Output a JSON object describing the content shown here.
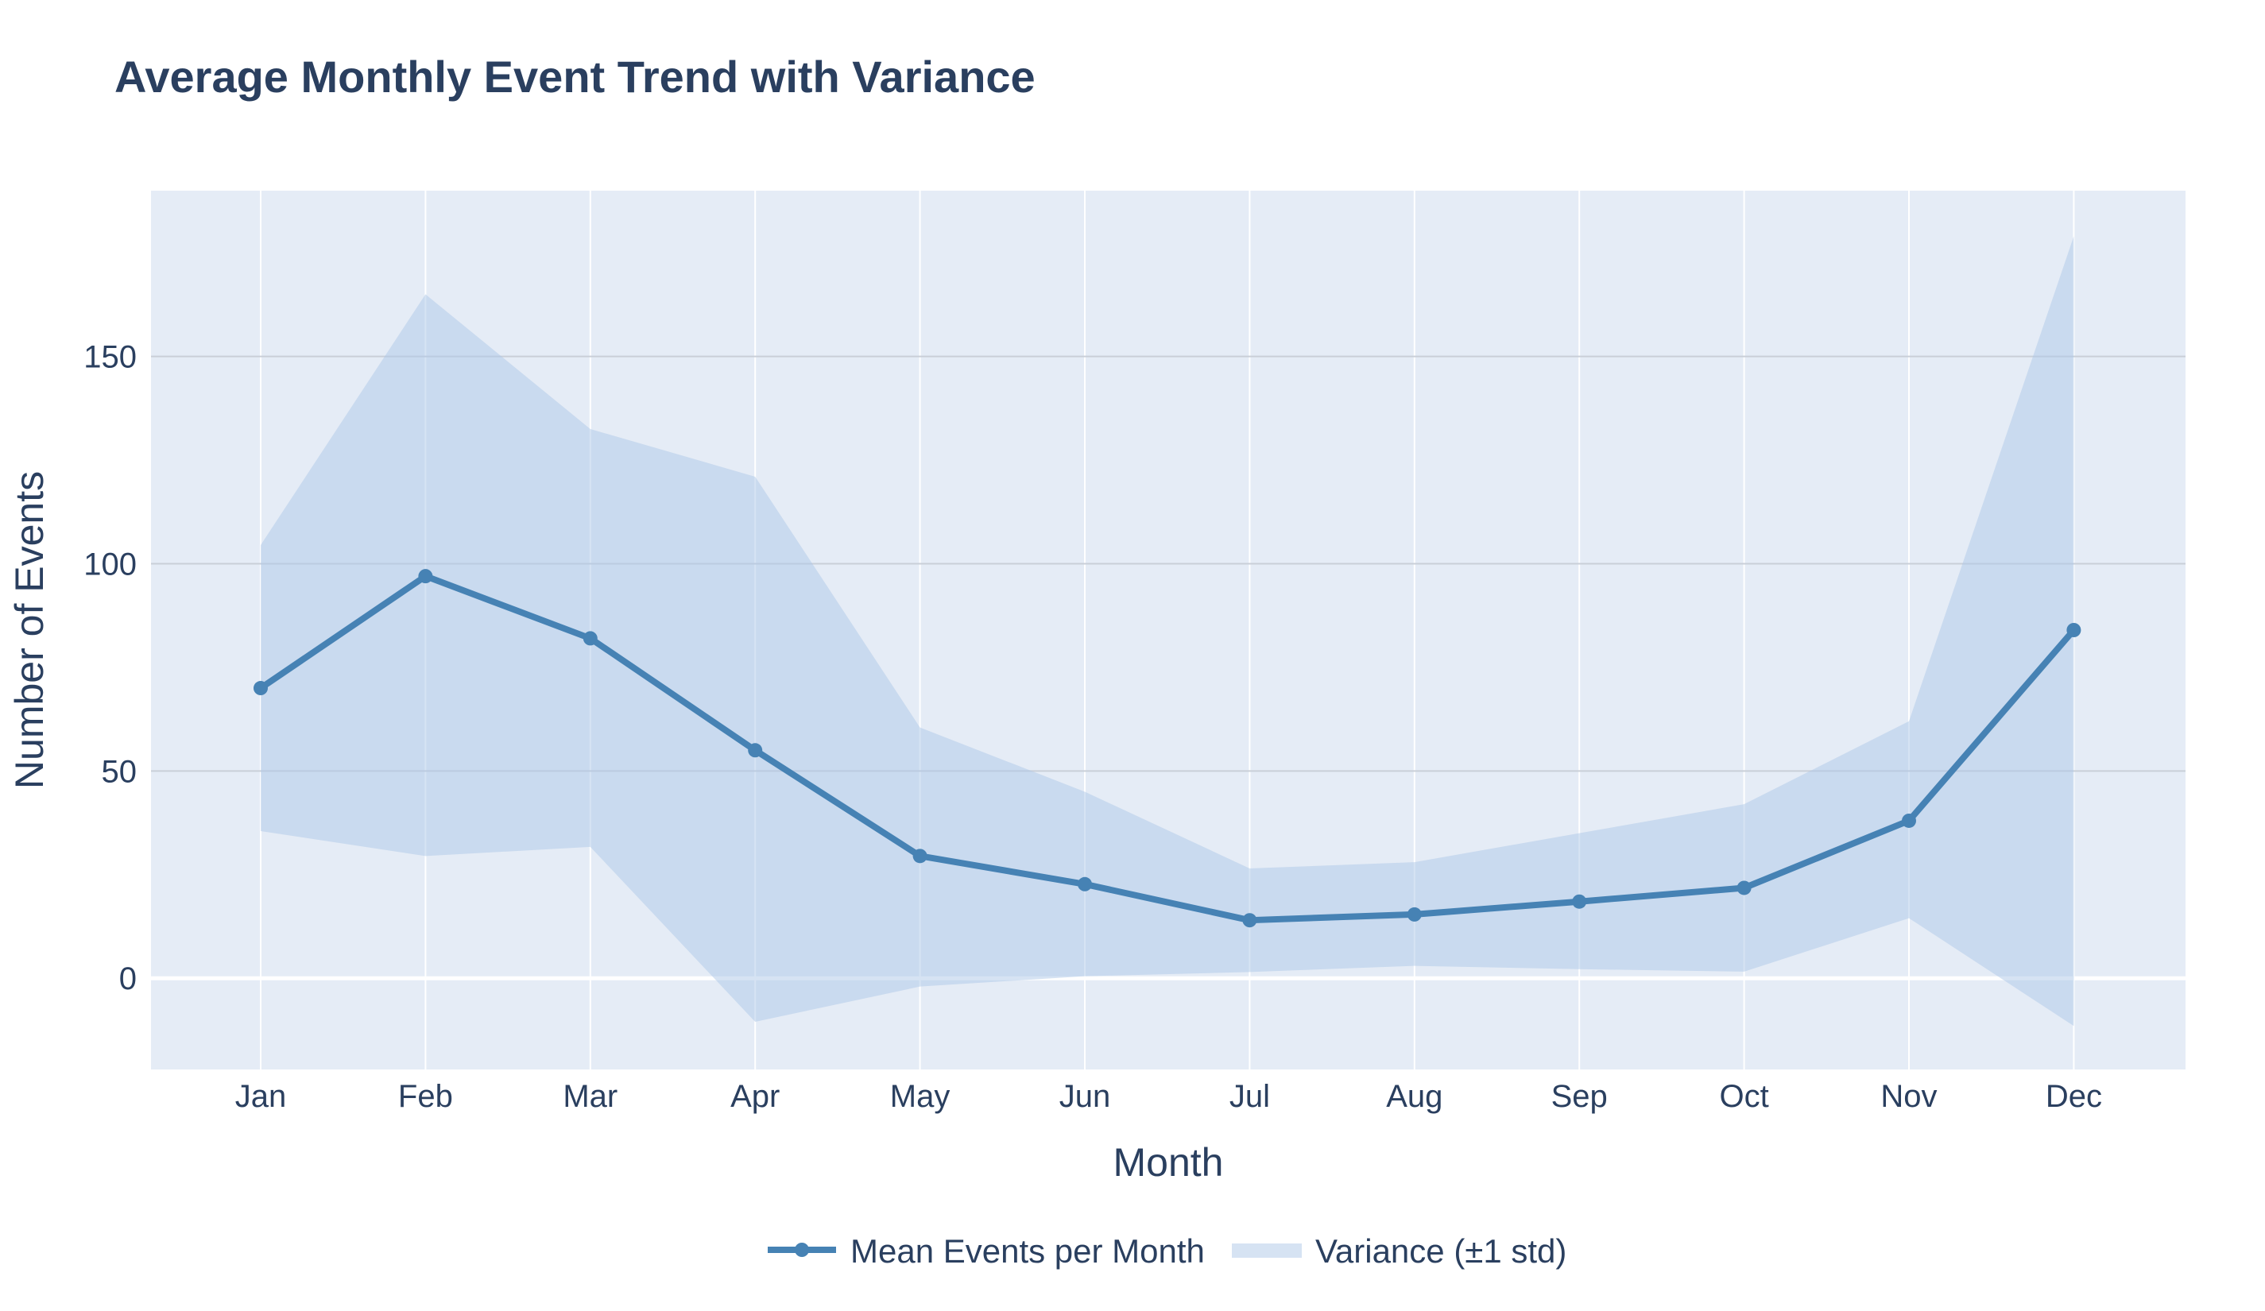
{
  "chart_data": {
    "type": "line",
    "title": "Average Monthly Event Trend with Variance",
    "xlabel": "Month",
    "ylabel": "Number of Events",
    "categories": [
      "Jan",
      "Feb",
      "Mar",
      "Apr",
      "May",
      "Jun",
      "Jul",
      "Aug",
      "Sep",
      "Oct",
      "Nov",
      "Dec"
    ],
    "ylim": [
      -22,
      190
    ],
    "yticks": [
      0,
      50,
      100,
      150
    ],
    "grid": true,
    "legend_position": "bottom-center",
    "series": [
      {
        "name": "Mean Events per Month",
        "kind": "line-markers",
        "color": "#4682b4",
        "values": [
          70,
          97,
          82,
          55,
          29.5,
          22.7,
          14,
          15.4,
          18.5,
          21.8,
          38,
          84
        ]
      },
      {
        "name": "Variance (±1 std)",
        "kind": "band",
        "color": "#aec7e8",
        "upper": [
          104.5,
          165,
          132.5,
          121,
          60.5,
          45,
          26.5,
          28,
          35,
          42,
          62,
          179
        ],
        "lower": [
          35.5,
          29.5,
          31.7,
          -10.5,
          -2,
          0.5,
          1.5,
          3,
          2.2,
          1.6,
          14.5,
          -11.5
        ]
      }
    ],
    "colors": {
      "plot_background": "#e5ecf6",
      "gridline": "#ffffff",
      "text": "#2a3f5f"
    }
  }
}
